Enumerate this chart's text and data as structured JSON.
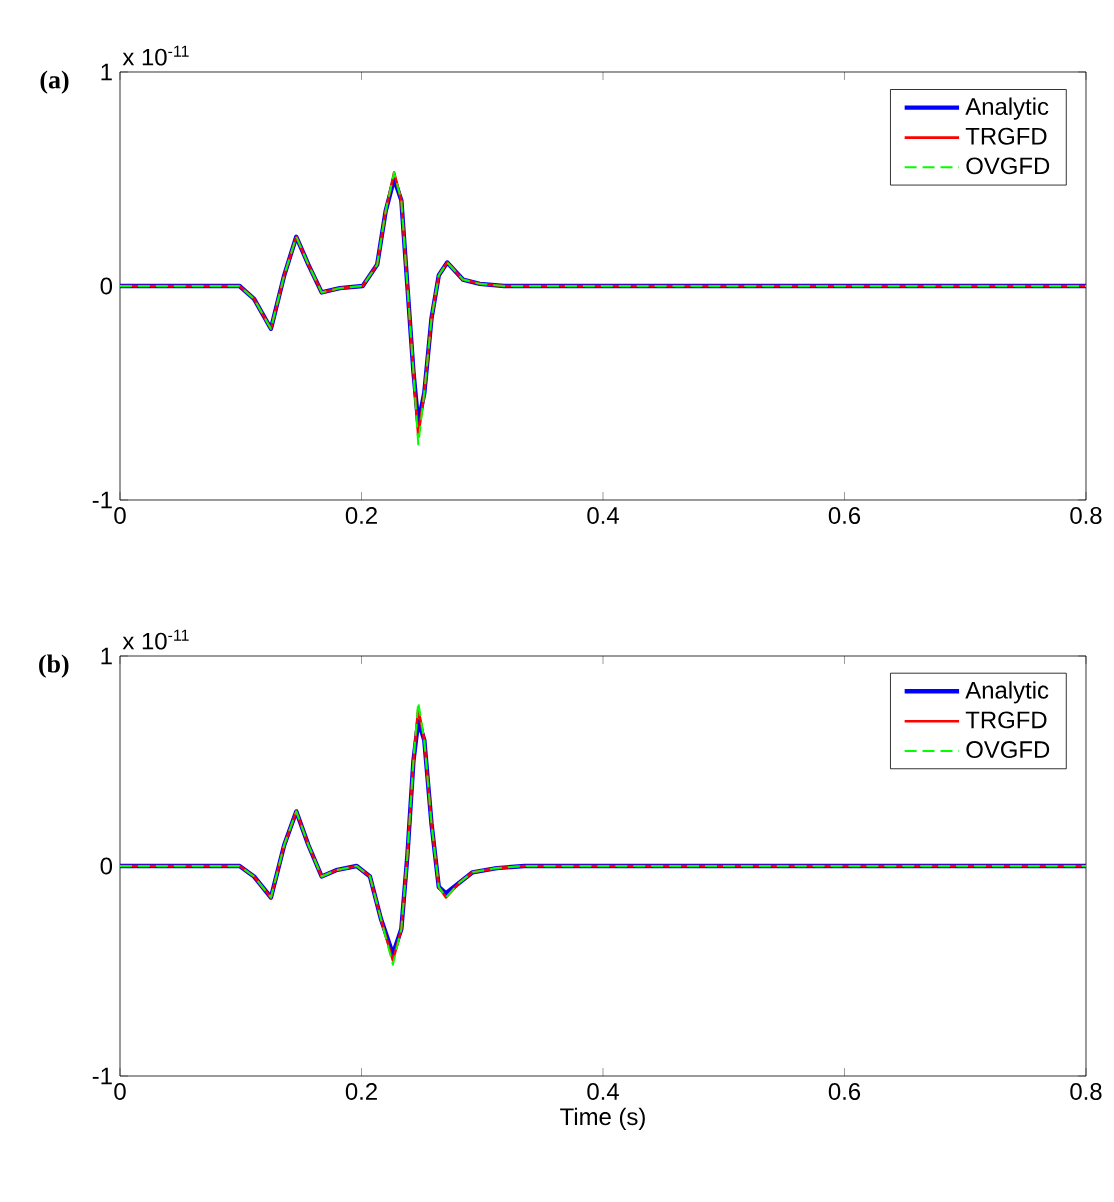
{
  "chart_data": [
    {
      "type": "line",
      "title": "(a)",
      "annotations": [
        "x 10$^{-11}$"
      ],
      "xlim": [
        0,
        0.8
      ],
      "ylim": [
        -1,
        1
      ],
      "xticks": [
        0,
        0.2,
        0.4,
        0.6,
        0.8
      ],
      "yticks": [
        -1,
        0,
        1
      ],
      "grid": false,
      "legend": "top right",
      "marker": "none",
      "x": [
        0,
        0.099,
        0.111,
        0.125,
        0.136,
        0.146,
        0.156,
        0.167,
        0.182,
        0.201,
        0.213,
        0.22,
        0.227,
        0.233,
        0.238,
        0.243,
        0.247,
        0.252,
        0.258,
        0.264,
        0.271,
        0.284,
        0.298,
        0.318,
        0.8
      ],
      "series": [
        {
          "name": "Analytic",
          "color": "#0000ff",
          "line_style": "solid",
          "values": [
            0,
            0,
            -0.06,
            -0.2,
            0.05,
            0.23,
            0.1,
            -0.03,
            -0.01,
            0,
            0.1,
            0.35,
            0.5,
            0.4,
            0,
            -0.4,
            -0.64,
            -0.5,
            -0.15,
            0.05,
            0.11,
            0.03,
            0.01,
            0,
            0
          ]
        },
        {
          "name": "TRGFD",
          "color": "#ff0000",
          "line_style": "solid",
          "values": [
            0,
            0,
            -0.06,
            -0.2,
            0.05,
            0.23,
            0.1,
            -0.03,
            -0.01,
            0,
            0.1,
            0.35,
            0.53,
            0.4,
            0,
            -0.4,
            -0.7,
            -0.5,
            -0.15,
            0.05,
            0.11,
            0.03,
            0.01,
            0,
            0
          ]
        },
        {
          "name": "OVGFD",
          "color": "#00ff00",
          "line_style": "dashed",
          "values": [
            0,
            0,
            -0.06,
            -0.2,
            0.05,
            0.23,
            0.1,
            -0.03,
            -0.01,
            0,
            0.1,
            0.35,
            0.53,
            0.4,
            0,
            -0.4,
            -0.74,
            -0.5,
            -0.15,
            0.05,
            0.11,
            0.03,
            0.01,
            0,
            0
          ]
        }
      ]
    },
    {
      "type": "line",
      "title": "(b)",
      "xlabel": "Time (s)",
      "annotations": [
        "x 10$^{-11}$"
      ],
      "xlim": [
        0,
        0.8
      ],
      "ylim": [
        -1,
        1
      ],
      "xticks": [
        0,
        0.2,
        0.4,
        0.6,
        0.8
      ],
      "yticks": [
        -1,
        0,
        1
      ],
      "grid": false,
      "legend": "top right",
      "marker": "none",
      "x": [
        0,
        0.099,
        0.111,
        0.125,
        0.136,
        0.146,
        0.156,
        0.167,
        0.179,
        0.196,
        0.207,
        0.216,
        0.226,
        0.233,
        0.238,
        0.243,
        0.247,
        0.252,
        0.258,
        0.264,
        0.27,
        0.281,
        0.292,
        0.312,
        0.335,
        0.8
      ],
      "series": [
        {
          "name": "Analytic",
          "color": "#0000ff",
          "line_style": "solid",
          "values": [
            0,
            0,
            -0.05,
            -0.15,
            0.1,
            0.26,
            0.1,
            -0.05,
            -0.02,
            0,
            -0.05,
            -0.25,
            -0.42,
            -0.3,
            0.05,
            0.5,
            0.69,
            0.6,
            0.2,
            -0.1,
            -0.13,
            -0.08,
            -0.03,
            -0.01,
            0,
            0
          ]
        },
        {
          "name": "TRGFD",
          "color": "#ff0000",
          "line_style": "solid",
          "values": [
            0,
            0,
            -0.05,
            -0.15,
            0.1,
            0.26,
            0.1,
            -0.05,
            -0.02,
            0,
            -0.05,
            -0.25,
            -0.45,
            -0.3,
            0.05,
            0.5,
            0.75,
            0.6,
            0.2,
            -0.1,
            -0.15,
            -0.08,
            -0.03,
            -0.01,
            0,
            0
          ]
        },
        {
          "name": "OVGFD",
          "color": "#00ff00",
          "line_style": "dashed",
          "values": [
            0,
            0,
            -0.05,
            -0.15,
            0.1,
            0.26,
            0.1,
            -0.05,
            -0.02,
            0,
            -0.05,
            -0.25,
            -0.47,
            -0.3,
            0.05,
            0.5,
            0.78,
            0.6,
            0.2,
            -0.1,
            -0.15,
            -0.08,
            -0.03,
            -0.01,
            0,
            0
          ]
        }
      ]
    }
  ]
}
